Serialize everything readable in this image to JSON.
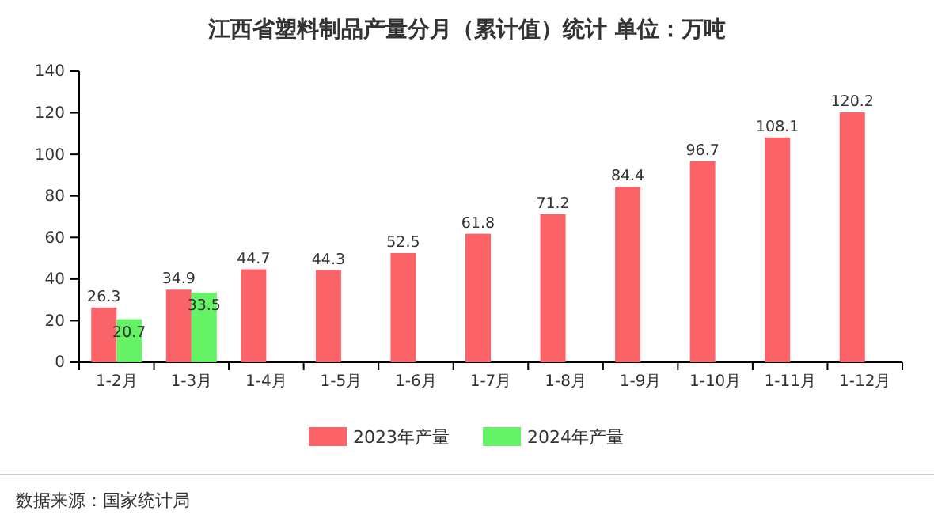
{
  "chart_data": {
    "type": "bar",
    "title": "江西省塑料制品产量分月（累计值）统计 单位：万吨",
    "categories": [
      "1-2月",
      "1-3月",
      "1-4月",
      "1-5月",
      "1-6月",
      "1-7月",
      "1-8月",
      "1-9月",
      "1-10月",
      "1-11月",
      "1-12月"
    ],
    "series": [
      {
        "name": "2023年产量",
        "color": "#fa6468",
        "values": [
          26.3,
          34.9,
          44.7,
          44.3,
          52.5,
          61.8,
          71.2,
          84.4,
          96.7,
          108.1,
          120.2
        ]
      },
      {
        "name": "2024年产量",
        "color": "#66f266",
        "values": [
          20.7,
          33.5,
          null,
          null,
          null,
          null,
          null,
          null,
          null,
          null,
          null
        ]
      }
    ],
    "ylim": [
      0,
      140
    ],
    "yticks": [
      0,
      20,
      40,
      60,
      80,
      100,
      120,
      140
    ],
    "grid": false,
    "legend": "bottom",
    "data_labels": true,
    "annotations": [
      "数据来源：国家统计局"
    ]
  }
}
